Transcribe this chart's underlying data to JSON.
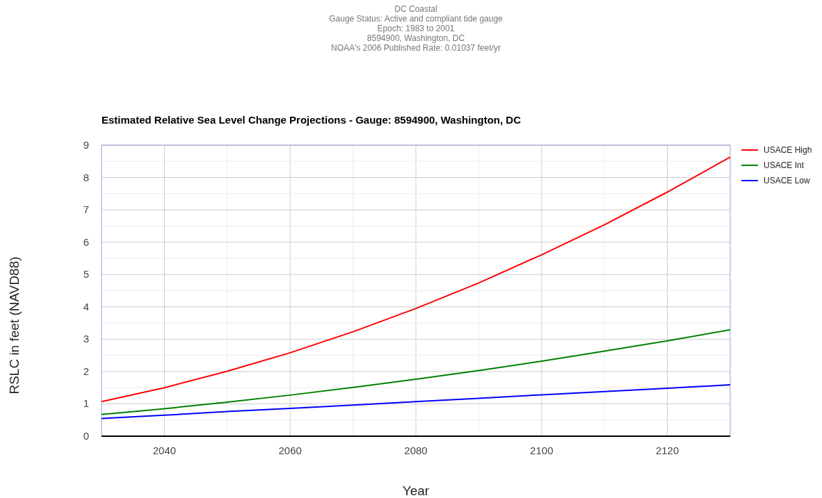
{
  "chart_data": {
    "type": "line",
    "title": "Estimated Relative Sea Level Change Projections - Gauge: 8594900, Washington, DC",
    "annotations": [
      "DC Coastal",
      "Gauge Status: Active and compliant tide gauge",
      "Epoch: 1983 to 2001",
      "8594900, Washington, DC",
      "NOAA's 2006 Published Rate: 0.01037 feet/yr"
    ],
    "xlabel": "Year",
    "ylabel": "RSLC in feet (NAVD88)",
    "x": [
      2030,
      2040,
      2050,
      2060,
      2070,
      2080,
      2090,
      2100,
      2110,
      2120,
      2130
    ],
    "series": [
      {
        "name": "USACE High",
        "color": "#ff0000",
        "values": [
          1.07,
          1.5,
          2.01,
          2.58,
          3.23,
          3.95,
          4.74,
          5.61,
          6.54,
          7.55,
          8.63
        ]
      },
      {
        "name": "USACE Int",
        "color": "#008000",
        "values": [
          0.67,
          0.85,
          1.05,
          1.27,
          1.51,
          1.76,
          2.03,
          2.32,
          2.63,
          2.95,
          3.29
        ]
      },
      {
        "name": "USACE Low",
        "color": "#0000ff",
        "values": [
          0.55,
          0.65,
          0.76,
          0.86,
          0.96,
          1.07,
          1.17,
          1.28,
          1.38,
          1.48,
          1.59
        ]
      }
    ],
    "xlim": [
      2030,
      2130
    ],
    "xticks": [
      2040,
      {
        "value": 2050,
        "label": null
      },
      2060,
      {
        "value": 2070,
        "label": null
      },
      2080,
      {
        "value": 2090,
        "label": null
      },
      2100,
      {
        "value": 2110,
        "label": null
      },
      2120
    ],
    "ylim": [
      0,
      9
    ],
    "yticks": [
      0,
      {
        "value": 0.5,
        "label": null
      },
      1,
      {
        "value": 1.5,
        "label": null
      },
      2,
      {
        "value": 2.5,
        "label": null
      },
      3,
      {
        "value": 3.5,
        "label": null
      },
      4,
      {
        "value": 4.5,
        "label": null
      },
      5,
      {
        "value": 5.5,
        "label": null
      },
      6,
      {
        "value": 6.5,
        "label": null
      },
      7,
      {
        "value": 7.5,
        "label": null
      },
      8,
      {
        "value": 8.5,
        "label": null
      },
      9
    ],
    "grid": true,
    "legend": "top right",
    "line_style": "solid",
    "marker": "none"
  }
}
